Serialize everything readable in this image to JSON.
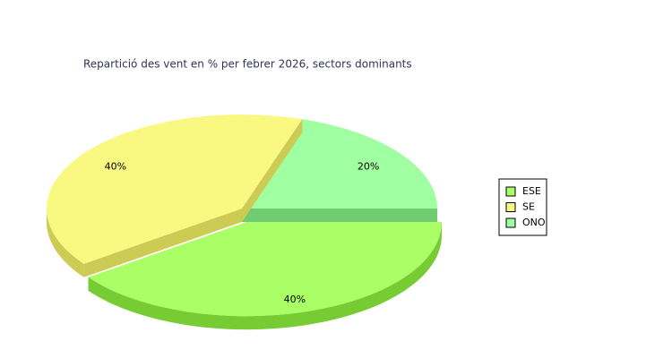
{
  "chart_data": {
    "type": "pie3d",
    "title": "Repartició des vent en % per febrer 2026, sectors dominants",
    "categories": [
      "ESE",
      "SE",
      "ONO"
    ],
    "values": [
      40,
      40,
      20
    ],
    "value_labels": [
      "40%",
      "40%",
      "20%"
    ],
    "colors": [
      "#aaff66",
      "#f9f981",
      "#a0ffa0"
    ],
    "side_colors": [
      "#77cc33",
      "#cccc55",
      "#70cc70"
    ],
    "legend": "right"
  }
}
